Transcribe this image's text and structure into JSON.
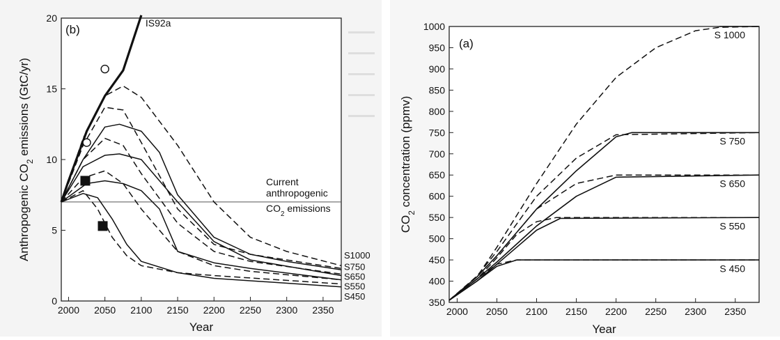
{
  "chart_data": [
    {
      "panel": "(b)",
      "type": "line",
      "xlabel": "Year",
      "ylabel_parts": [
        "Anthropogenic CO",
        "2",
        " emissions (GtC/yr)"
      ],
      "xlim": [
        1990,
        2375
      ],
      "ylim": [
        0,
        20
      ],
      "xticks": [
        2000,
        2050,
        2100,
        2150,
        2200,
        2250,
        2300,
        2350
      ],
      "yticks": [
        0,
        5,
        10,
        15,
        20
      ],
      "annotation_lines": [
        "Current",
        "anthropogenic"
      ],
      "annotation_co2_parts": [
        "CO",
        "2",
        " emissions"
      ],
      "reference_line_y": 7,
      "series": [
        {
          "name": "IS92a",
          "style": "thick",
          "x": [
            1990,
            2000,
            2025,
            2050,
            2075,
            2100
          ],
          "y": [
            7.0,
            8.5,
            12.0,
            14.5,
            16.3,
            20.2
          ]
        },
        {
          "name": "S1000",
          "style": "dashed",
          "x": [
            1990,
            2020,
            2050,
            2075,
            2100,
            2150,
            2200,
            2250,
            2300,
            2375
          ],
          "y": [
            7.0,
            11.5,
            14.5,
            15.2,
            14.4,
            11.0,
            7.0,
            4.5,
            3.5,
            2.5
          ]
        },
        {
          "name": "S750",
          "style": "solid",
          "x": [
            1990,
            2020,
            2050,
            2070,
            2100,
            2125,
            2150,
            2200,
            2250,
            2300,
            2375
          ],
          "y": [
            7.0,
            10.0,
            12.3,
            12.5,
            12.0,
            10.5,
            7.5,
            4.5,
            3.3,
            2.8,
            2.2
          ]
        },
        {
          "name": "S750",
          "style": "dashed",
          "x": [
            1990,
            2020,
            2050,
            2075,
            2100,
            2150,
            2200,
            2250,
            2375
          ],
          "y": [
            7.0,
            11.0,
            13.7,
            13.5,
            11.2,
            6.5,
            4.0,
            3.3,
            2.3
          ]
        },
        {
          "name": "S650",
          "style": "solid",
          "x": [
            1990,
            2020,
            2050,
            2070,
            2100,
            2150,
            2200,
            2250,
            2375
          ],
          "y": [
            7.0,
            9.5,
            10.3,
            10.4,
            10.0,
            7.0,
            4.2,
            2.9,
            1.8
          ]
        },
        {
          "name": "S650",
          "style": "dashed",
          "x": [
            1990,
            2020,
            2050,
            2075,
            2100,
            2150,
            2200,
            2250,
            2375
          ],
          "y": [
            7.0,
            10.0,
            11.5,
            11.0,
            9.0,
            5.5,
            3.5,
            2.8,
            1.9
          ]
        },
        {
          "name": "S550",
          "style": "solid",
          "x": [
            1990,
            2025,
            2050,
            2075,
            2100,
            2125,
            2150,
            2200,
            2250,
            2375
          ],
          "y": [
            7.0,
            8.3,
            8.5,
            8.3,
            7.8,
            6.5,
            3.5,
            2.7,
            2.3,
            1.5
          ]
        },
        {
          "name": "S550",
          "style": "dashed",
          "x": [
            1990,
            2020,
            2050,
            2075,
            2100,
            2150,
            2200,
            2250,
            2375
          ],
          "y": [
            7.0,
            8.7,
            9.2,
            8.3,
            6.5,
            3.5,
            2.5,
            2.1,
            1.5
          ]
        },
        {
          "name": "S450",
          "style": "solid",
          "x": [
            1990,
            2020,
            2040,
            2060,
            2080,
            2100,
            2150,
            2200,
            2375
          ],
          "y": [
            7.0,
            7.6,
            7.3,
            5.8,
            4.0,
            2.8,
            2.0,
            1.6,
            1.0
          ]
        },
        {
          "name": "S450",
          "style": "dashed",
          "x": [
            1990,
            2020,
            2040,
            2060,
            2080,
            2100,
            2150,
            2200,
            2375
          ],
          "y": [
            7.0,
            7.8,
            6.5,
            4.5,
            3.2,
            2.5,
            2.0,
            1.8,
            1.2
          ]
        }
      ],
      "end_labels": [
        "S1000",
        "S750",
        "S650",
        "S550",
        "S450"
      ],
      "end_label_y": [
        3.2,
        2.4,
        1.7,
        1.0,
        0.3
      ],
      "markers": [
        {
          "shape": "open-circle",
          "x": 2050,
          "y": 16.4
        },
        {
          "shape": "open-circle",
          "x": 2025,
          "y": 11.2
        },
        {
          "shape": "filled-square",
          "x": 2023,
          "y": 8.5
        },
        {
          "shape": "filled-square",
          "x": 2047,
          "y": 5.3
        }
      ]
    },
    {
      "panel": "(a)",
      "type": "line",
      "xlabel": "Year",
      "ylabel_parts": [
        "CO",
        "2",
        " concentration (ppmv)"
      ],
      "xlim": [
        1990,
        2380
      ],
      "ylim": [
        350,
        1000
      ],
      "xticks": [
        2000,
        2050,
        2100,
        2150,
        2200,
        2250,
        2300,
        2350
      ],
      "yticks": [
        350,
        400,
        450,
        500,
        550,
        600,
        650,
        700,
        750,
        800,
        850,
        900,
        950,
        1000
      ],
      "series": [
        {
          "name": "S 1000",
          "style": "dashed",
          "x": [
            1990,
            2025,
            2050,
            2100,
            2150,
            2200,
            2250,
            2300,
            2330,
            2380
          ],
          "y": [
            355,
            410,
            480,
            630,
            770,
            880,
            950,
            990,
            998,
            1000
          ]
        },
        {
          "name": "S 1000",
          "style": "solid",
          "x": [
            2330,
            2380
          ],
          "y": [
            1000,
            1000
          ]
        },
        {
          "name": "S 750",
          "style": "solid",
          "x": [
            1990,
            2025,
            2050,
            2100,
            2150,
            2200,
            2220,
            2380
          ],
          "y": [
            355,
            410,
            460,
            570,
            660,
            740,
            750,
            750
          ]
        },
        {
          "name": "S 750",
          "style": "dashed",
          "x": [
            1990,
            2025,
            2050,
            2100,
            2150,
            2200,
            2380
          ],
          "y": [
            355,
            412,
            470,
            600,
            690,
            745,
            750
          ]
        },
        {
          "name": "S 650",
          "style": "solid",
          "x": [
            1990,
            2025,
            2050,
            2100,
            2150,
            2200,
            2380
          ],
          "y": [
            355,
            405,
            445,
            530,
            600,
            645,
            650
          ]
        },
        {
          "name": "S 650",
          "style": "dashed",
          "x": [
            1990,
            2025,
            2050,
            2100,
            2150,
            2200,
            2380
          ],
          "y": [
            355,
            410,
            460,
            570,
            630,
            650,
            650
          ]
        },
        {
          "name": "S 550",
          "style": "solid",
          "x": [
            1990,
            2025,
            2050,
            2075,
            2100,
            2130,
            2380
          ],
          "y": [
            355,
            400,
            440,
            480,
            520,
            548,
            550
          ]
        },
        {
          "name": "S 550",
          "style": "dashed",
          "x": [
            1990,
            2025,
            2050,
            2075,
            2100,
            2125,
            2380
          ],
          "y": [
            355,
            405,
            455,
            510,
            540,
            550,
            550
          ]
        },
        {
          "name": "S 450",
          "style": "solid",
          "x": [
            1990,
            2025,
            2050,
            2075,
            2380
          ],
          "y": [
            355,
            400,
            435,
            450,
            450
          ]
        },
        {
          "name": "S 450",
          "style": "dashed",
          "x": [
            1990,
            2025,
            2050,
            2075,
            2380
          ],
          "y": [
            355,
            405,
            440,
            450,
            450
          ]
        }
      ],
      "end_labels": [
        "S 1000",
        "S 750",
        "S 650",
        "S 550",
        "S 450"
      ],
      "end_label_y": [
        980,
        730,
        630,
        530,
        430
      ]
    }
  ]
}
